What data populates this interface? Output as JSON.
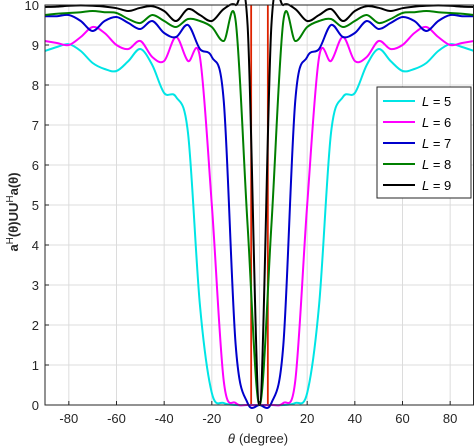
{
  "chart_data": {
    "type": "line",
    "xlabel_symbol": "θ",
    "xlabel_unit": "(degree)",
    "ylabel_parts": [
      "a",
      "H",
      "(θ)UU",
      "H",
      "a(θ)"
    ],
    "xlim": [
      -90,
      90
    ],
    "ylim": [
      0,
      10
    ],
    "xticks": [
      -80,
      -60,
      -40,
      -20,
      0,
      20,
      40,
      60,
      80
    ],
    "yticks": [
      0,
      1,
      2,
      3,
      4,
      5,
      6,
      7,
      8,
      9,
      10
    ],
    "grid": true,
    "legend_position": "right",
    "x": [
      -90,
      -85,
      -80,
      -75,
      -70,
      -65,
      -60,
      -55,
      -50,
      -45,
      -40,
      -35,
      -30,
      -25,
      -20,
      -15,
      -10,
      -5,
      0,
      5,
      10,
      15,
      20,
      25,
      30,
      35,
      40,
      45,
      50,
      55,
      60,
      65,
      70,
      75,
      80,
      85,
      90
    ],
    "series": [
      {
        "name": "5",
        "label_prefix": "L",
        "color": "#00e5e5",
        "values": [
          8.85,
          8.95,
          9.02,
          8.85,
          8.55,
          8.4,
          8.35,
          8.6,
          8.9,
          8.5,
          7.8,
          7.7,
          6.8,
          2.5,
          0.3,
          0.05,
          0,
          0,
          0,
          0,
          0,
          0.05,
          0.3,
          2.5,
          6.8,
          7.7,
          7.8,
          8.5,
          8.9,
          8.6,
          8.35,
          8.4,
          8.55,
          8.85,
          9.02,
          8.95,
          8.85
        ]
      },
      {
        "name": "6",
        "label_prefix": "L",
        "color": "#ff00ff",
        "values": [
          9.1,
          9.05,
          9.0,
          9.2,
          9.45,
          9.3,
          9.0,
          8.9,
          9.1,
          8.7,
          8.6,
          9.2,
          8.6,
          8.7,
          5.0,
          0.6,
          0.05,
          0,
          0,
          0,
          0.05,
          0.6,
          5.0,
          8.7,
          8.6,
          9.2,
          8.6,
          8.7,
          9.1,
          8.9,
          9.0,
          9.3,
          9.45,
          9.2,
          9.0,
          9.05,
          9.1
        ]
      },
      {
        "name": "7",
        "label_prefix": "L",
        "color": "#0000cc",
        "values": [
          9.72,
          9.72,
          9.75,
          9.6,
          9.35,
          9.6,
          9.7,
          9.55,
          9.4,
          9.6,
          9.3,
          9.2,
          9.5,
          8.9,
          8.7,
          7.6,
          1.5,
          0.05,
          0,
          0.05,
          1.5,
          7.6,
          8.7,
          8.9,
          9.5,
          9.2,
          9.3,
          9.6,
          9.4,
          9.55,
          9.7,
          9.6,
          9.35,
          9.6,
          9.75,
          9.72,
          9.72
        ]
      },
      {
        "name": "8",
        "label_prefix": "L",
        "color": "#007f00",
        "values": [
          9.75,
          9.78,
          9.8,
          9.82,
          9.85,
          9.82,
          9.8,
          9.65,
          9.55,
          9.75,
          9.6,
          9.45,
          9.65,
          9.6,
          9.45,
          9.1,
          9.6,
          4.5,
          0,
          4.5,
          9.6,
          9.1,
          9.45,
          9.6,
          9.65,
          9.45,
          9.6,
          9.75,
          9.55,
          9.65,
          9.8,
          9.82,
          9.85,
          9.82,
          9.8,
          9.78,
          9.75
        ]
      },
      {
        "name": "9",
        "label_prefix": "L",
        "color": "#000000",
        "values": [
          9.95,
          9.96,
          9.98,
          9.99,
          9.98,
          9.96,
          9.92,
          9.85,
          9.93,
          9.97,
          9.85,
          9.6,
          9.9,
          9.75,
          9.6,
          9.9,
          10.0,
          9.5,
          0,
          9.5,
          10.0,
          9.9,
          9.6,
          9.75,
          9.9,
          9.6,
          9.85,
          9.97,
          9.93,
          9.85,
          9.92,
          9.96,
          9.98,
          9.99,
          9.98,
          9.96,
          9.95
        ]
      }
    ],
    "vertical_lines": {
      "color": "#dd2200",
      "x": [
        -3.5,
        3.5
      ]
    }
  }
}
